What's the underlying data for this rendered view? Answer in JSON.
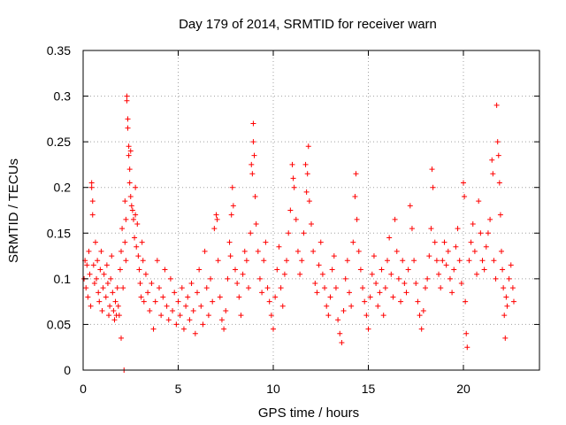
{
  "chart_data": {
    "type": "scatter",
    "title": "Day 179 of 2014, SRMTID for receiver warn",
    "xlabel": "GPS time / hours",
    "ylabel": "SRMTID / TECUs",
    "xlim": [
      0,
      24
    ],
    "ylim": [
      0,
      0.35
    ],
    "xticks": [
      0,
      5,
      10,
      15,
      20
    ],
    "xtick_labels": [
      "0",
      "5",
      "10",
      "15",
      "20"
    ],
    "yticks": [
      0,
      0.05,
      0.1,
      0.15,
      0.2,
      0.25,
      0.3,
      0.35
    ],
    "ytick_labels": [
      "0",
      "0.05",
      "0.1",
      "0.15",
      "0.2",
      "0.25",
      "0.3",
      "0.35"
    ],
    "grid": true,
    "marker": "+",
    "colors": {
      "points": "#ff0000",
      "grid": "#a0a0a0",
      "axis": "#000000"
    },
    "series": [
      {
        "name": "SRMTID",
        "points": [
          [
            0.05,
            0.1
          ],
          [
            0.1,
            0.12
          ],
          [
            0.15,
            0.09
          ],
          [
            0.2,
            0.115
          ],
          [
            0.25,
            0.08
          ],
          [
            0.3,
            0.13
          ],
          [
            0.35,
            0.105
          ],
          [
            0.4,
            0.07
          ],
          [
            0.45,
            0.205
          ],
          [
            0.45,
            0.2
          ],
          [
            0.5,
            0.185
          ],
          [
            0.5,
            0.17
          ],
          [
            0.55,
            0.115
          ],
          [
            0.6,
            0.095
          ],
          [
            0.65,
            0.14
          ],
          [
            0.7,
            0.1
          ],
          [
            0.75,
            0.12
          ],
          [
            0.8,
            0.085
          ],
          [
            0.85,
            0.075
          ],
          [
            0.9,
            0.11
          ],
          [
            0.95,
            0.13
          ],
          [
            1.0,
            0.065
          ],
          [
            1.05,
            0.09
          ],
          [
            1.1,
            0.105
          ],
          [
            1.2,
            0.08
          ],
          [
            1.25,
            0.115
          ],
          [
            1.3,
            0.095
          ],
          [
            1.35,
            0.06
          ],
          [
            1.4,
            0.07
          ],
          [
            1.45,
            0.1
          ],
          [
            1.5,
            0.125
          ],
          [
            1.55,
            0.085
          ],
          [
            1.6,
            0.065
          ],
          [
            1.65,
            0.055
          ],
          [
            1.7,
            0.075
          ],
          [
            1.75,
            0.06
          ],
          [
            1.8,
            0.09
          ],
          [
            1.85,
            0.07
          ],
          [
            1.9,
            0.06
          ],
          [
            1.95,
            0.11
          ],
          [
            2.0,
            0.035
          ],
          [
            2.0,
            0.13
          ],
          [
            2.05,
            0.155
          ],
          [
            2.1,
            0.09
          ],
          [
            2.15,
            0.0
          ],
          [
            2.2,
            0.14
          ],
          [
            2.2,
            0.185
          ],
          [
            2.25,
            0.12
          ],
          [
            2.25,
            0.165
          ],
          [
            2.3,
            0.3
          ],
          [
            2.3,
            0.295
          ],
          [
            2.35,
            0.275
          ],
          [
            2.35,
            0.265
          ],
          [
            2.4,
            0.245
          ],
          [
            2.4,
            0.235
          ],
          [
            2.45,
            0.22
          ],
          [
            2.45,
            0.205
          ],
          [
            2.5,
            0.24
          ],
          [
            2.5,
            0.19
          ],
          [
            2.55,
            0.18
          ],
          [
            2.6,
            0.175
          ],
          [
            2.65,
            0.165
          ],
          [
            2.7,
            0.145
          ],
          [
            2.75,
            0.2
          ],
          [
            2.75,
            0.17
          ],
          [
            2.8,
            0.135
          ],
          [
            2.85,
            0.16
          ],
          [
            2.9,
            0.125
          ],
          [
            2.95,
            0.11
          ],
          [
            3.0,
            0.095
          ],
          [
            3.05,
            0.08
          ],
          [
            3.1,
            0.14
          ],
          [
            3.15,
            0.12
          ],
          [
            3.2,
            0.075
          ],
          [
            3.3,
            0.105
          ],
          [
            3.4,
            0.085
          ],
          [
            3.5,
            0.065
          ],
          [
            3.6,
            0.095
          ],
          [
            3.7,
            0.045
          ],
          [
            3.8,
            0.075
          ],
          [
            3.9,
            0.12
          ],
          [
            4.0,
            0.09
          ],
          [
            4.1,
            0.06
          ],
          [
            4.2,
            0.08
          ],
          [
            4.3,
            0.11
          ],
          [
            4.4,
            0.07
          ],
          [
            4.5,
            0.055
          ],
          [
            4.6,
            0.1
          ],
          [
            4.7,
            0.065
          ],
          [
            4.8,
            0.085
          ],
          [
            4.9,
            0.05
          ],
          [
            5.0,
            0.075
          ],
          [
            5.1,
            0.06
          ],
          [
            5.2,
            0.09
          ],
          [
            5.3,
            0.045
          ],
          [
            5.4,
            0.07
          ],
          [
            5.5,
            0.08
          ],
          [
            5.6,
            0.055
          ],
          [
            5.7,
            0.095
          ],
          [
            5.8,
            0.065
          ],
          [
            5.9,
            0.04
          ],
          [
            6.0,
            0.085
          ],
          [
            6.1,
            0.11
          ],
          [
            6.2,
            0.07
          ],
          [
            6.3,
            0.05
          ],
          [
            6.4,
            0.13
          ],
          [
            6.5,
            0.09
          ],
          [
            6.6,
            0.06
          ],
          [
            6.7,
            0.1
          ],
          [
            6.8,
            0.075
          ],
          [
            6.9,
            0.155
          ],
          [
            7.0,
            0.17
          ],
          [
            7.05,
            0.165
          ],
          [
            7.1,
            0.12
          ],
          [
            7.2,
            0.08
          ],
          [
            7.3,
            0.055
          ],
          [
            7.4,
            0.045
          ],
          [
            7.5,
            0.065
          ],
          [
            7.6,
            0.1
          ],
          [
            7.7,
            0.14
          ],
          [
            7.75,
            0.125
          ],
          [
            7.8,
            0.17
          ],
          [
            7.85,
            0.2
          ],
          [
            7.9,
            0.18
          ],
          [
            8.0,
            0.11
          ],
          [
            8.1,
            0.095
          ],
          [
            8.2,
            0.08
          ],
          [
            8.3,
            0.06
          ],
          [
            8.4,
            0.105
          ],
          [
            8.5,
            0.13
          ],
          [
            8.6,
            0.12
          ],
          [
            8.7,
            0.09
          ],
          [
            8.8,
            0.15
          ],
          [
            8.85,
            0.225
          ],
          [
            8.9,
            0.215
          ],
          [
            8.95,
            0.27
          ],
          [
            8.95,
            0.25
          ],
          [
            9.0,
            0.235
          ],
          [
            9.05,
            0.19
          ],
          [
            9.1,
            0.16
          ],
          [
            9.2,
            0.13
          ],
          [
            9.3,
            0.1
          ],
          [
            9.4,
            0.085
          ],
          [
            9.5,
            0.12
          ],
          [
            9.6,
            0.14
          ],
          [
            9.7,
            0.09
          ],
          [
            9.8,
            0.075
          ],
          [
            9.9,
            0.06
          ],
          [
            10.0,
            0.045
          ],
          [
            10.1,
            0.08
          ],
          [
            10.2,
            0.11
          ],
          [
            10.3,
            0.135
          ],
          [
            10.4,
            0.09
          ],
          [
            10.5,
            0.07
          ],
          [
            10.6,
            0.105
          ],
          [
            10.7,
            0.12
          ],
          [
            10.8,
            0.15
          ],
          [
            10.9,
            0.175
          ],
          [
            11.0,
            0.225
          ],
          [
            11.05,
            0.21
          ],
          [
            11.1,
            0.2
          ],
          [
            11.2,
            0.165
          ],
          [
            11.3,
            0.13
          ],
          [
            11.4,
            0.105
          ],
          [
            11.5,
            0.12
          ],
          [
            11.6,
            0.15
          ],
          [
            11.7,
            0.225
          ],
          [
            11.75,
            0.195
          ],
          [
            11.8,
            0.215
          ],
          [
            11.85,
            0.245
          ],
          [
            11.9,
            0.185
          ],
          [
            12.0,
            0.16
          ],
          [
            12.1,
            0.13
          ],
          [
            12.2,
            0.095
          ],
          [
            12.3,
            0.085
          ],
          [
            12.4,
            0.115
          ],
          [
            12.5,
            0.14
          ],
          [
            12.6,
            0.105
          ],
          [
            12.7,
            0.09
          ],
          [
            12.8,
            0.07
          ],
          [
            12.9,
            0.06
          ],
          [
            13.0,
            0.08
          ],
          [
            13.1,
            0.11
          ],
          [
            13.2,
            0.125
          ],
          [
            13.3,
            0.09
          ],
          [
            13.4,
            0.055
          ],
          [
            13.5,
            0.04
          ],
          [
            13.6,
            0.03
          ],
          [
            13.7,
            0.065
          ],
          [
            13.8,
            0.1
          ],
          [
            13.9,
            0.12
          ],
          [
            14.0,
            0.085
          ],
          [
            14.1,
            0.07
          ],
          [
            14.2,
            0.14
          ],
          [
            14.3,
            0.19
          ],
          [
            14.35,
            0.215
          ],
          [
            14.4,
            0.165
          ],
          [
            14.5,
            0.13
          ],
          [
            14.6,
            0.11
          ],
          [
            14.7,
            0.09
          ],
          [
            14.8,
            0.075
          ],
          [
            14.9,
            0.06
          ],
          [
            15.0,
            0.045
          ],
          [
            15.1,
            0.08
          ],
          [
            15.2,
            0.105
          ],
          [
            15.3,
            0.125
          ],
          [
            15.4,
            0.095
          ],
          [
            15.5,
            0.07
          ],
          [
            15.6,
            0.085
          ],
          [
            15.7,
            0.11
          ],
          [
            15.8,
            0.06
          ],
          [
            15.9,
            0.09
          ],
          [
            16.0,
            0.12
          ],
          [
            16.1,
            0.145
          ],
          [
            16.2,
            0.105
          ],
          [
            16.3,
            0.08
          ],
          [
            16.4,
            0.165
          ],
          [
            16.5,
            0.13
          ],
          [
            16.6,
            0.1
          ],
          [
            16.7,
            0.075
          ],
          [
            16.8,
            0.12
          ],
          [
            16.9,
            0.095
          ],
          [
            17.0,
            0.085
          ],
          [
            17.1,
            0.11
          ],
          [
            17.2,
            0.18
          ],
          [
            17.3,
            0.155
          ],
          [
            17.4,
            0.12
          ],
          [
            17.5,
            0.095
          ],
          [
            17.6,
            0.075
          ],
          [
            17.7,
            0.06
          ],
          [
            17.8,
            0.045
          ],
          [
            17.9,
            0.065
          ],
          [
            18.0,
            0.09
          ],
          [
            18.1,
            0.1
          ],
          [
            18.2,
            0.125
          ],
          [
            18.3,
            0.155
          ],
          [
            18.35,
            0.22
          ],
          [
            18.4,
            0.2
          ],
          [
            18.5,
            0.14
          ],
          [
            18.6,
            0.12
          ],
          [
            18.7,
            0.105
          ],
          [
            18.8,
            0.09
          ],
          [
            18.9,
            0.12
          ],
          [
            19.0,
            0.14
          ],
          [
            19.1,
            0.115
          ],
          [
            19.2,
            0.13
          ],
          [
            19.3,
            0.1
          ],
          [
            19.4,
            0.085
          ],
          [
            19.5,
            0.11
          ],
          [
            19.6,
            0.135
          ],
          [
            19.7,
            0.155
          ],
          [
            19.8,
            0.12
          ],
          [
            19.9,
            0.095
          ],
          [
            20.0,
            0.205
          ],
          [
            20.05,
            0.19
          ],
          [
            20.1,
            0.075
          ],
          [
            20.15,
            0.04
          ],
          [
            20.2,
            0.025
          ],
          [
            20.3,
            0.12
          ],
          [
            20.4,
            0.14
          ],
          [
            20.5,
            0.16
          ],
          [
            20.6,
            0.13
          ],
          [
            20.7,
            0.105
          ],
          [
            20.8,
            0.185
          ],
          [
            20.9,
            0.15
          ],
          [
            21.0,
            0.12
          ],
          [
            21.1,
            0.11
          ],
          [
            21.2,
            0.135
          ],
          [
            21.3,
            0.15
          ],
          [
            21.4,
            0.165
          ],
          [
            21.5,
            0.23
          ],
          [
            21.55,
            0.215
          ],
          [
            21.6,
            0.12
          ],
          [
            21.7,
            0.1
          ],
          [
            21.75,
            0.29
          ],
          [
            21.8,
            0.25
          ],
          [
            21.85,
            0.235
          ],
          [
            21.9,
            0.205
          ],
          [
            21.95,
            0.17
          ],
          [
            22.0,
            0.13
          ],
          [
            22.05,
            0.11
          ],
          [
            22.1,
            0.09
          ],
          [
            22.15,
            0.06
          ],
          [
            22.2,
            0.035
          ],
          [
            22.25,
            0.08
          ],
          [
            22.3,
            0.07
          ],
          [
            22.4,
            0.1
          ],
          [
            22.5,
            0.115
          ],
          [
            22.6,
            0.09
          ],
          [
            22.65,
            0.075
          ]
        ]
      }
    ]
  }
}
